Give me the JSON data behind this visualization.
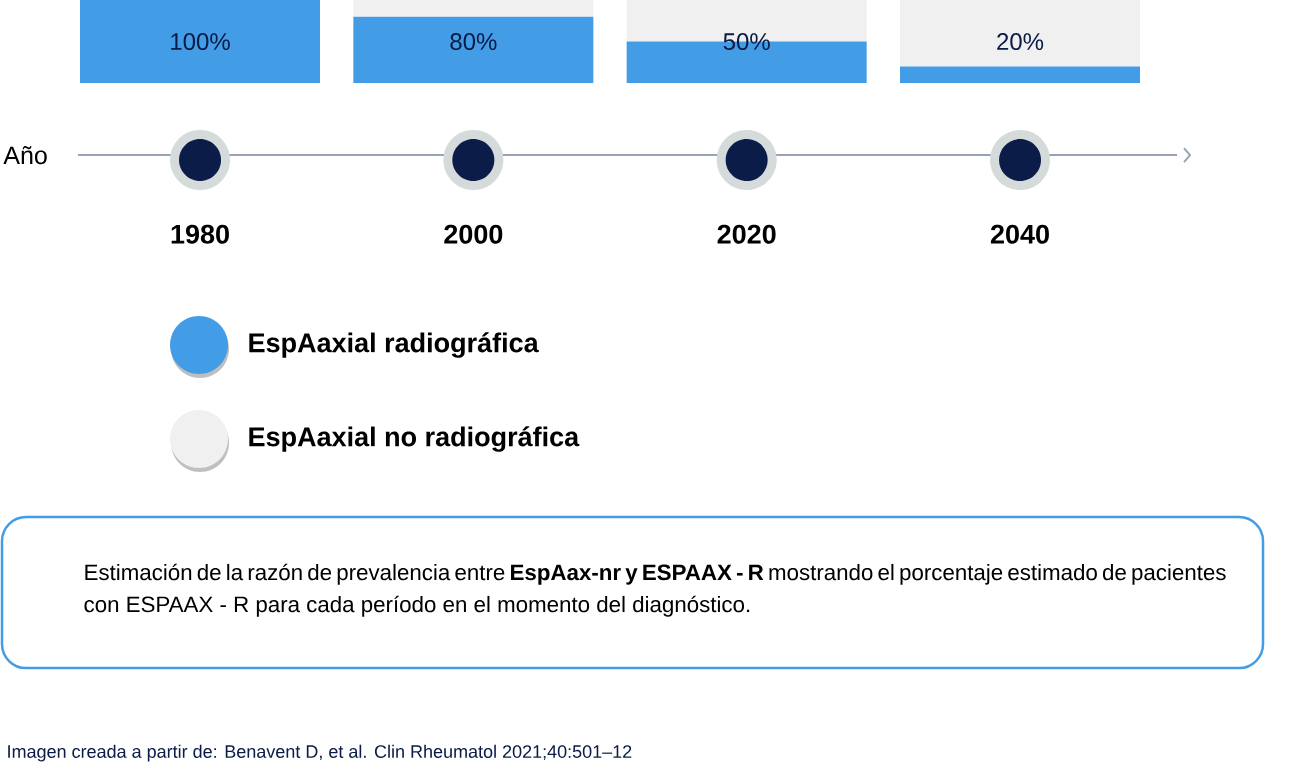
{
  "chart_data": {
    "type": "bar",
    "stacked": true,
    "xlabel": "Año",
    "categories": [
      "1980",
      "2000",
      "2020",
      "2040"
    ],
    "series": [
      {
        "name": "EspAaxial radiográfica",
        "color": "#439de6",
        "values": [
          100,
          80,
          50,
          20
        ],
        "value_labels": [
          "100%",
          "80%",
          "50%",
          "20%"
        ]
      },
      {
        "name": "EspAaxial no radiográfica",
        "color": "#f0f0f0",
        "values": [
          0,
          20,
          50,
          80
        ]
      }
    ],
    "ylim": [
      0,
      100
    ],
    "tick_labels": "x",
    "legend": "bottom left",
    "annotations": [
      "Estimación de la razón de prevalencia entre **EspAax-nr y ESPAAX - R** mostrando el porcentaje estimado de pacientes con ESPAAX - R para cada período en el momento del diagnóstico.",
      "Imagen creada a partir de: Benavent D, et al. Clin Rheumatol 2021;40:501–12"
    ]
  }
}
